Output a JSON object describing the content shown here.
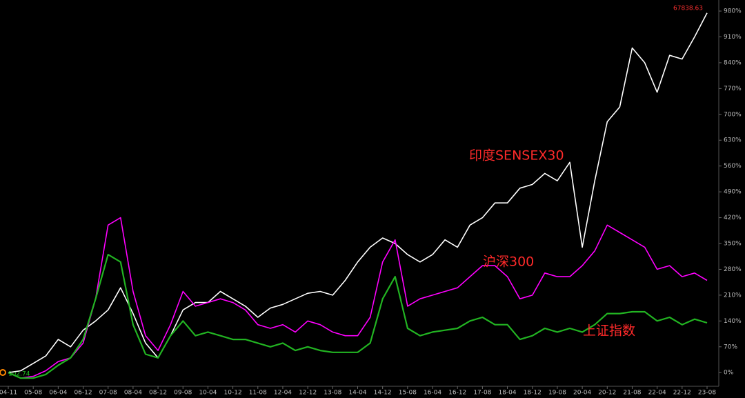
{
  "chart_data": {
    "type": "line",
    "categories": [
      "04-11",
      null,
      "05-08",
      null,
      "06-04",
      null,
      "06-12",
      null,
      "07-08",
      null,
      "08-04",
      null,
      "08-12",
      null,
      "09-08",
      null,
      "10-04",
      null,
      "10-12",
      null,
      "11-08",
      null,
      "12-04",
      null,
      "12-12",
      null,
      "13-08",
      null,
      "14-04",
      null,
      "14-12",
      null,
      "15-08",
      null,
      "16-04",
      null,
      "16-12",
      null,
      "17-08",
      null,
      "18-04",
      null,
      "18-12",
      null,
      "19-08",
      null,
      "20-04",
      null,
      "20-12",
      null,
      "21-08",
      null,
      "22-04",
      null,
      "22-12",
      null,
      "23-08"
    ],
    "series": [
      {
        "name": "印度SENSEX30",
        "color": "#ffffff",
        "values": [
          0,
          5,
          25,
          45,
          90,
          70,
          115,
          140,
          170,
          230,
          160,
          80,
          40,
          100,
          170,
          190,
          190,
          220,
          200,
          180,
          150,
          175,
          185,
          200,
          215,
          220,
          210,
          250,
          300,
          340,
          365,
          350,
          320,
          300,
          320,
          360,
          340,
          400,
          420,
          460,
          460,
          500,
          510,
          540,
          520,
          570,
          340,
          520,
          680,
          720,
          880,
          840,
          760,
          860,
          850,
          910,
          975
        ]
      },
      {
        "name": "沪深300",
        "color": "#ff00ff",
        "values": [
          0,
          -15,
          -10,
          5,
          30,
          40,
          80,
          200,
          400,
          420,
          220,
          100,
          60,
          130,
          220,
          180,
          190,
          200,
          190,
          170,
          130,
          120,
          130,
          110,
          140,
          130,
          110,
          100,
          100,
          150,
          300,
          360,
          180,
          200,
          210,
          220,
          230,
          260,
          290,
          290,
          260,
          200,
          210,
          270,
          260,
          260,
          290,
          330,
          400,
          380,
          360,
          340,
          280,
          290,
          260,
          270,
          250
        ]
      },
      {
        "name": "上证指数",
        "color": "#22b422",
        "values": [
          0,
          -15,
          -15,
          -5,
          20,
          40,
          90,
          200,
          320,
          300,
          130,
          50,
          40,
          100,
          140,
          100,
          110,
          100,
          90,
          90,
          80,
          70,
          80,
          60,
          70,
          60,
          55,
          55,
          55,
          80,
          200,
          260,
          120,
          100,
          110,
          115,
          120,
          140,
          150,
          130,
          130,
          90,
          100,
          120,
          110,
          120,
          110,
          130,
          160,
          160,
          165,
          165,
          140,
          150,
          130,
          145,
          135
        ]
      }
    ],
    "ylim": [
      -37,
      1010
    ],
    "yticks": [
      {
        "value": 0,
        "label": "0%"
      },
      {
        "value": 70,
        "label": "70%"
      },
      {
        "value": 140,
        "label": "140%"
      },
      {
        "value": 210,
        "label": "210%"
      },
      {
        "value": 280,
        "label": "280%"
      },
      {
        "value": 350,
        "label": "350%"
      },
      {
        "value": 420,
        "label": "420%"
      },
      {
        "value": 490,
        "label": "490%"
      },
      {
        "value": 560,
        "label": "560%"
      },
      {
        "value": 630,
        "label": "630%"
      },
      {
        "value": 700,
        "label": "700%"
      },
      {
        "value": 770,
        "label": "770%"
      },
      {
        "value": 840,
        "label": "840%"
      },
      {
        "value": 910,
        "label": "910%"
      },
      {
        "value": 980,
        "label": "980%"
      }
    ],
    "annotations": [
      "67838.63",
      "102.74"
    ]
  }
}
